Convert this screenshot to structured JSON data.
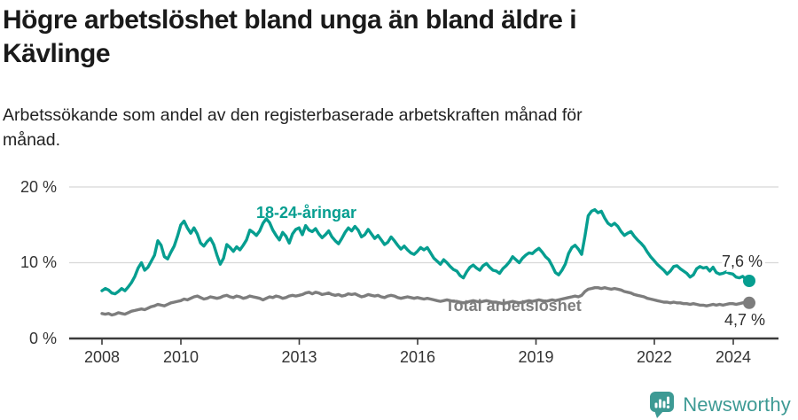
{
  "header": {
    "title_lines": [
      "Högre arbetslöshet bland unga än bland äldre i",
      "Kävlinge"
    ],
    "subtitle_lines": [
      "Arbetssökande som andel av den registerbaserade arbetskraften månad för",
      "månad."
    ]
  },
  "chart_data": {
    "type": "line",
    "unit": "%",
    "x_start_year": 2008.0,
    "x_end_year": 2024.42,
    "x_tick_labels": [
      "2008",
      "2010",
      "2013",
      "2016",
      "2019",
      "2022",
      "2024"
    ],
    "y_tick_labels": [
      "0 %",
      "10 %",
      "20 %"
    ],
    "ylim": [
      0,
      21.5
    ],
    "grid": "horizontal",
    "frequency": "monthly",
    "series": [
      {
        "name": "18-24-åringar",
        "color": "#069e90",
        "end_label": "7,6 %",
        "end_value": 7.6,
        "values": [
          6.3,
          6.6,
          6.4,
          6.0,
          5.9,
          6.2,
          6.6,
          6.3,
          6.8,
          7.4,
          8.2,
          9.3,
          10.0,
          9.0,
          9.4,
          10.2,
          11.0,
          12.9,
          12.3,
          10.8,
          10.5,
          11.4,
          12.2,
          13.5,
          15.0,
          15.5,
          14.6,
          13.9,
          14.6,
          13.8,
          12.6,
          12.2,
          12.8,
          13.2,
          12.4,
          11.0,
          9.8,
          10.6,
          12.4,
          12.0,
          11.5,
          12.1,
          11.7,
          12.3,
          13.0,
          14.3,
          14.0,
          13.6,
          14.2,
          15.2,
          15.8,
          15.3,
          14.3,
          13.6,
          13.0,
          14.0,
          13.5,
          12.6,
          13.8,
          14.4,
          14.6,
          13.7,
          14.9,
          14.3,
          14.1,
          14.5,
          13.8,
          13.3,
          13.7,
          14.2,
          13.4,
          12.9,
          12.5,
          13.2,
          14.0,
          14.6,
          14.2,
          14.8,
          14.3,
          13.4,
          13.7,
          14.4,
          13.8,
          13.2,
          13.6,
          13.0,
          12.4,
          12.7,
          13.4,
          12.9,
          12.3,
          11.8,
          12.2,
          11.7,
          11.3,
          11.1,
          11.5,
          12.0,
          11.7,
          12.0,
          11.3,
          10.6,
          10.2,
          9.8,
          10.4,
          10.0,
          9.5,
          9.1,
          8.9,
          8.3,
          8.0,
          8.8,
          9.4,
          9.7,
          9.3,
          9.0,
          9.6,
          9.9,
          9.4,
          9.0,
          8.9,
          8.6,
          9.2,
          9.6,
          10.1,
          10.8,
          10.4,
          10.0,
          10.6,
          11.0,
          11.3,
          11.2,
          11.6,
          11.9,
          11.4,
          10.8,
          10.4,
          9.6,
          8.7,
          8.4,
          9.0,
          9.8,
          11.2,
          12.0,
          12.3,
          11.8,
          11.1,
          13.5,
          16.2,
          16.8,
          17.0,
          16.6,
          16.8,
          15.9,
          15.2,
          14.9,
          15.2,
          14.8,
          14.1,
          13.6,
          13.9,
          14.1,
          13.5,
          13.0,
          12.6,
          12.1,
          11.4,
          10.8,
          10.3,
          9.8,
          9.4,
          9.0,
          8.5,
          8.9,
          9.5,
          9.6,
          9.2,
          8.9,
          8.6,
          8.1,
          8.4,
          9.2,
          9.5,
          9.3,
          9.4,
          8.9,
          9.4,
          8.7,
          8.5,
          8.6,
          8.8,
          8.6,
          8.5,
          8.1,
          8.0,
          8.2,
          7.8,
          7.6
        ]
      },
      {
        "name": "Total arbetslöshet",
        "color": "#7d7d7d",
        "end_label": "4,7 %",
        "end_value": 4.7,
        "values": [
          3.3,
          3.2,
          3.3,
          3.1,
          3.2,
          3.4,
          3.3,
          3.2,
          3.4,
          3.6,
          3.7,
          3.8,
          3.9,
          3.8,
          4.0,
          4.2,
          4.3,
          4.5,
          4.4,
          4.3,
          4.5,
          4.7,
          4.8,
          4.9,
          5.0,
          5.2,
          5.1,
          5.3,
          5.5,
          5.6,
          5.4,
          5.2,
          5.3,
          5.5,
          5.4,
          5.3,
          5.4,
          5.6,
          5.7,
          5.5,
          5.4,
          5.6,
          5.5,
          5.3,
          5.4,
          5.6,
          5.5,
          5.4,
          5.3,
          5.1,
          5.3,
          5.5,
          5.4,
          5.6,
          5.5,
          5.3,
          5.4,
          5.6,
          5.7,
          5.6,
          5.7,
          5.8,
          6.0,
          6.1,
          5.9,
          6.1,
          6.0,
          5.8,
          5.9,
          6.0,
          5.8,
          5.7,
          5.8,
          5.6,
          5.7,
          5.9,
          5.8,
          5.9,
          5.7,
          5.5,
          5.6,
          5.8,
          5.7,
          5.6,
          5.7,
          5.5,
          5.4,
          5.6,
          5.7,
          5.6,
          5.4,
          5.3,
          5.4,
          5.5,
          5.4,
          5.3,
          5.4,
          5.3,
          5.2,
          5.3,
          5.2,
          5.1,
          5.0,
          4.9,
          5.0,
          5.1,
          5.0,
          4.9,
          4.9,
          4.8,
          4.7,
          4.8,
          4.9,
          5.0,
          4.9,
          4.8,
          4.9,
          5.0,
          4.9,
          4.8,
          4.8,
          4.7,
          4.6,
          4.7,
          4.8,
          4.9,
          4.8,
          4.7,
          4.8,
          4.9,
          5.0,
          4.9,
          5.0,
          5.1,
          5.0,
          4.9,
          5.0,
          5.1,
          5.0,
          5.1,
          5.2,
          5.3,
          5.4,
          5.5,
          5.6,
          5.5,
          5.7,
          6.2,
          6.5,
          6.6,
          6.7,
          6.7,
          6.6,
          6.7,
          6.6,
          6.5,
          6.6,
          6.5,
          6.4,
          6.2,
          6.1,
          6.0,
          5.8,
          5.7,
          5.6,
          5.5,
          5.3,
          5.2,
          5.1,
          5.0,
          4.9,
          4.8,
          4.8,
          4.7,
          4.8,
          4.7,
          4.7,
          4.6,
          4.6,
          4.5,
          4.6,
          4.5,
          4.4,
          4.4,
          4.3,
          4.4,
          4.5,
          4.4,
          4.5,
          4.4,
          4.5,
          4.6,
          4.6,
          4.5,
          4.6,
          4.7,
          4.8,
          4.7
        ]
      }
    ]
  },
  "footer": {
    "brand": "Newsworthy"
  },
  "colors": {
    "accent_teal": "#069e90",
    "line_gray": "#7d7d7d",
    "gridline": "#d8d8d8",
    "axis": "#3b3b3b",
    "logo_teal": "#3d9a94"
  }
}
